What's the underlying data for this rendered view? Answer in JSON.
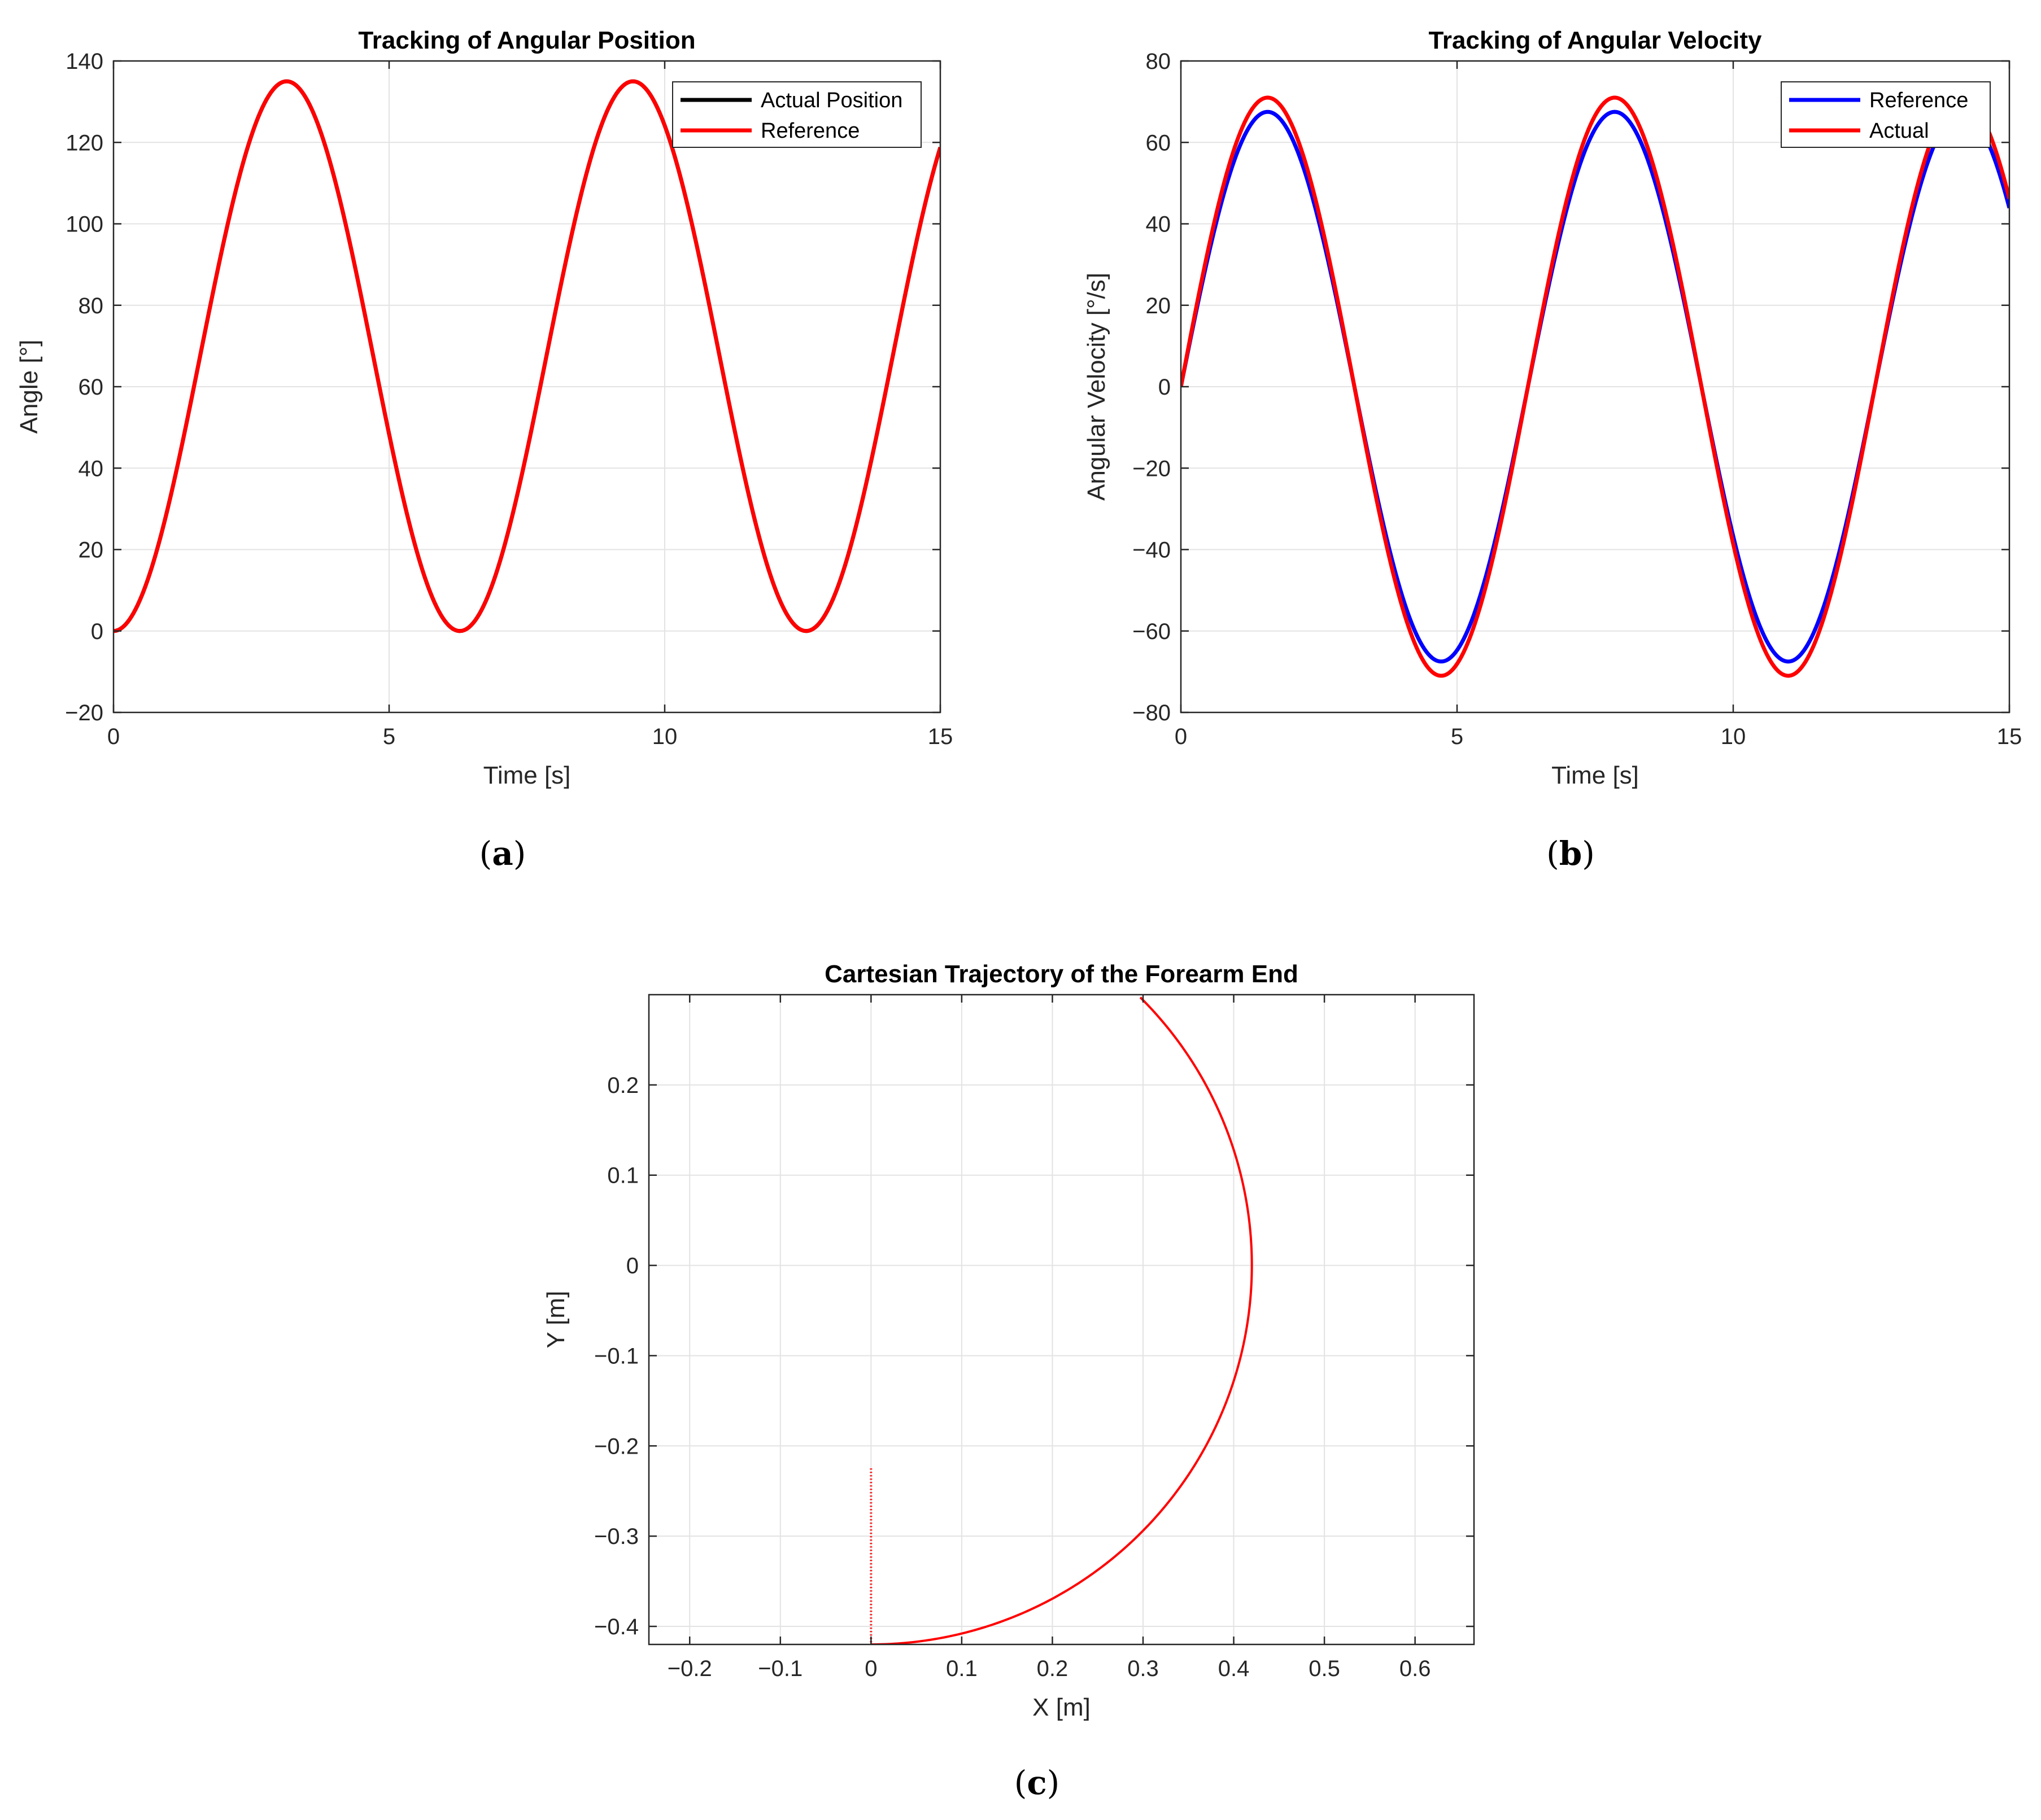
{
  "chart_data": [
    {
      "id": "a",
      "type": "line",
      "caption_letter": "a",
      "title": "Tracking of Angular Position",
      "xlabel": "Time [s]",
      "ylabel": "Angle [°]",
      "xlim": [
        0,
        15
      ],
      "ylim": [
        -20,
        140
      ],
      "xticks": [
        0,
        5,
        10,
        15
      ],
      "yticks": [
        -20,
        0,
        20,
        40,
        60,
        80,
        100,
        120,
        140
      ],
      "grid": true,
      "legend_position": "top-right",
      "series": [
        {
          "name": "Actual Position",
          "color": "#000000",
          "function": "67.5*(1-cos(t))",
          "x_range": [
            0,
            15
          ]
        },
        {
          "name": "Reference",
          "color": "#ff0000",
          "function": "67.5*(1-cos(t))",
          "x_range": [
            0,
            15
          ]
        }
      ]
    },
    {
      "id": "b",
      "type": "line",
      "caption_letter": "b",
      "title": "Tracking of Angular Velocity",
      "xlabel": "Time [s]",
      "ylabel": "Angular Velocity [°/s]",
      "xlim": [
        0,
        15
      ],
      "ylim": [
        -80,
        80
      ],
      "xticks": [
        0,
        5,
        10,
        15
      ],
      "yticks": [
        -80,
        -60,
        -40,
        -20,
        0,
        20,
        40,
        60,
        80
      ],
      "grid": true,
      "legend_position": "top-right",
      "series": [
        {
          "name": "Reference",
          "color": "#0000ff",
          "function": "67.5*sin(t)",
          "x_range": [
            0,
            15
          ]
        },
        {
          "name": "Actual",
          "color": "#ff0000",
          "function": "71*sin(t)",
          "x_range": [
            0,
            15
          ]
        }
      ]
    },
    {
      "id": "c",
      "type": "line",
      "caption_letter": "c",
      "title": "Cartesian Trajectory of the Forearm End",
      "xlabel": "X [m]",
      "ylabel": "Y [m]",
      "xlim": [
        -0.245,
        0.665
      ],
      "ylim": [
        -0.42,
        0.3
      ],
      "xticks": [
        -0.2,
        -0.1,
        0,
        0.1,
        0.2,
        0.3,
        0.4,
        0.5,
        0.6
      ],
      "yticks": [
        -0.4,
        -0.3,
        -0.2,
        -0.1,
        0,
        0.1,
        0.2
      ],
      "grid": true,
      "series": [
        {
          "color": "#ff0000",
          "style": "arc",
          "radius": 0.42,
          "angle_deg_range": [
            -90,
            45
          ]
        },
        {
          "color": "#ff0000",
          "style": "dotted",
          "x": [
            0,
            0
          ],
          "y": [
            -0.225,
            -0.42
          ]
        }
      ]
    }
  ]
}
